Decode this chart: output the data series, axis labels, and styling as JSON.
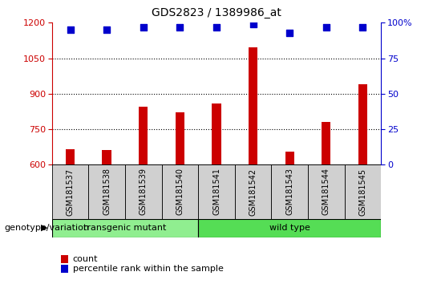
{
  "title": "GDS2823 / 1389986_at",
  "samples": [
    "GSM181537",
    "GSM181538",
    "GSM181539",
    "GSM181540",
    "GSM181541",
    "GSM181542",
    "GSM181543",
    "GSM181544",
    "GSM181545"
  ],
  "counts": [
    665,
    662,
    845,
    820,
    860,
    1095,
    655,
    780,
    940
  ],
  "percentile_ranks": [
    95,
    95,
    97,
    97,
    97,
    99,
    93,
    97,
    97
  ],
  "ylim_left": [
    600,
    1200
  ],
  "ylim_right": [
    0,
    100
  ],
  "yticks_left": [
    600,
    750,
    900,
    1050,
    1200
  ],
  "yticks_right": [
    0,
    25,
    50,
    75,
    100
  ],
  "bar_color": "#cc0000",
  "dot_color": "#0000cc",
  "transgenic_color": "#90ee90",
  "wildtype_color": "#55dd55",
  "transgenic_label": "transgenic mutant",
  "wildtype_label": "wild type",
  "transgenic_count": 4,
  "wildtype_count": 5,
  "legend_count_label": "count",
  "legend_pct_label": "percentile rank within the sample",
  "genotype_label": "genotype/variation",
  "bg_color": "#d0d0d0",
  "bar_width": 0.25,
  "dot_size": 40,
  "title_fontsize": 10,
  "tick_fontsize": 8,
  "label_fontsize": 7,
  "geno_fontsize": 8,
  "legend_fontsize": 8
}
